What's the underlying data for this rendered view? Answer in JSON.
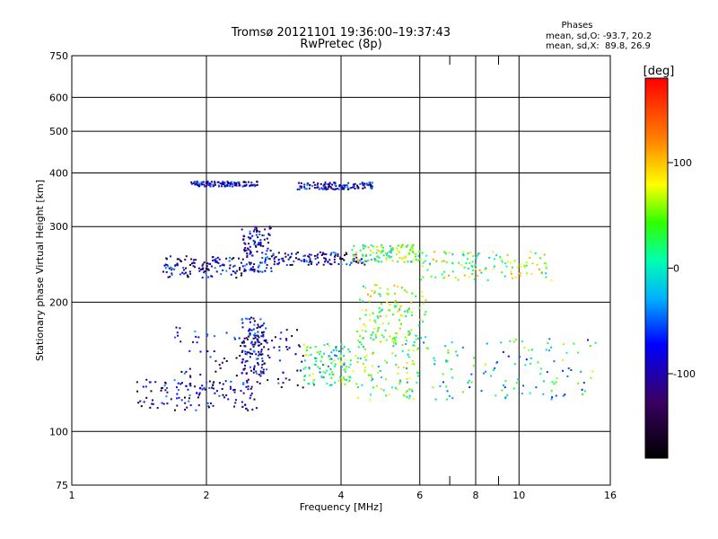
{
  "chart_data": {
    "type": "scatter",
    "title": "Tromsø 20121101 19:36:00–19:37:43",
    "subtitle": "RwPretec (8p)",
    "xlabel": "Frequency [MHz]",
    "ylabel": "Stationary phase Virtual Height [km]",
    "x_scale": "log",
    "y_scale": "log",
    "xlim": [
      1,
      16
    ],
    "ylim": [
      75,
      750
    ],
    "x_ticks": [
      1,
      2,
      4,
      6,
      8,
      10,
      16
    ],
    "y_ticks": [
      75,
      100,
      200,
      300,
      400,
      500,
      600,
      750
    ],
    "grid": true,
    "phases_box": {
      "title": "Phases",
      "line_o": "mean, sd,O: -93.7, 20.2",
      "line_x": "mean, sd,X:  89.8, 26.9"
    },
    "colorbar": {
      "label": "[deg]",
      "range": [
        -180,
        180
      ],
      "ticks": [
        100,
        0,
        -100
      ]
    },
    "clusters": [
      {
        "x": [
          1.4,
          2.6
        ],
        "y": [
          112,
          132
        ],
        "phase": -105
      },
      {
        "x": [
          1.7,
          3.3
        ],
        "y": [
          125,
          175
        ],
        "phase": -100
      },
      {
        "x": [
          2.4,
          2.7
        ],
        "y": [
          135,
          185
        ],
        "phase": -98
      },
      {
        "x": [
          3.3,
          4.2
        ],
        "y": [
          128,
          160
        ],
        "phase": 20
      },
      {
        "x": [
          4.2,
          6.0
        ],
        "y": [
          118,
          175
        ],
        "phase": 35
      },
      {
        "x": [
          6.0,
          15.0
        ],
        "y": [
          118,
          165
        ],
        "phase": 0
      },
      {
        "x": [
          1.6,
          2.4
        ],
        "y": [
          228,
          256
        ],
        "phase": -105
      },
      {
        "x": [
          2.4,
          2.8
        ],
        "y": [
          235,
          300
        ],
        "phase": -100
      },
      {
        "x": [
          2.8,
          4.6
        ],
        "y": [
          244,
          262
        ],
        "phase": -100
      },
      {
        "x": [
          4.2,
          6.0
        ],
        "y": [
          248,
          272
        ],
        "phase": 40
      },
      {
        "x": [
          6.0,
          12.0
        ],
        "y": [
          225,
          262
        ],
        "phase": 45
      },
      {
        "x": [
          1.85,
          2.6
        ],
        "y": [
          372,
          382
        ],
        "phase": -100
      },
      {
        "x": [
          3.2,
          4.7
        ],
        "y": [
          366,
          380
        ],
        "phase": -100
      },
      {
        "x": [
          4.4,
          6.2
        ],
        "y": [
          160,
          220
        ],
        "phase": 50
      }
    ]
  }
}
